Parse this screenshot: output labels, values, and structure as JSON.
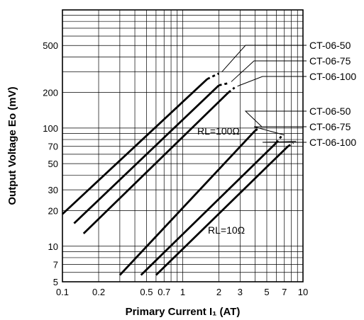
{
  "chart_data": {
    "type": "line",
    "x_scale": "log",
    "y_scale": "log",
    "xlim": [
      0.1,
      10
    ],
    "ylim": [
      5,
      1000
    ],
    "grid": true,
    "xlabel": "Primary Current I₁ (AT)",
    "ylabel": "Output Voltage Eo (mV)",
    "x_ticks": [
      0.1,
      0.2,
      0.5,
      0.7,
      1,
      2,
      3,
      5,
      7,
      10
    ],
    "x_tick_labels": [
      "0.1",
      "0.2",
      "0.5",
      "0.7",
      "1",
      "2",
      "3",
      "5",
      "7",
      "10"
    ],
    "y_ticks": [
      5,
      7,
      10,
      20,
      30,
      50,
      70,
      100,
      200,
      500
    ],
    "y_tick_labels": [
      "5",
      "7",
      "10",
      "20",
      "30",
      "50",
      "70",
      "100",
      "200",
      "500"
    ],
    "groups": [
      {
        "label": "RL=100Ω",
        "series": [
          {
            "name": "CT-06-50",
            "points": [
              [
                0.1,
                18.7
              ],
              [
                1.6,
                260
              ]
            ],
            "dashed_end": [
              2.0,
              290
            ]
          },
          {
            "name": "CT-06-75",
            "points": [
              [
                0.125,
                15.6
              ],
              [
                2.0,
                230
              ]
            ],
            "dashed_end": [
              2.4,
              240
            ]
          },
          {
            "name": "CT-06-100",
            "points": [
              [
                0.15,
                12.8
              ],
              [
                2.4,
                200
              ]
            ],
            "dashed_end": [
              2.7,
              220
            ]
          }
        ]
      },
      {
        "label": "RL=10Ω",
        "series": [
          {
            "name": "CT-06-50",
            "points": [
              [
                0.3,
                5.7
              ],
              [
                4.0,
                95
              ]
            ],
            "dashed_end": [
              4.3,
              100
            ]
          },
          {
            "name": "CT-06-75",
            "points": [
              [
                0.45,
                5.7
              ],
              [
                6.0,
                75
              ]
            ],
            "dashed_end": [
              6.6,
              85
            ]
          },
          {
            "name": "CT-06-100",
            "points": [
              [
                0.6,
                5.7
              ],
              [
                7.5,
                70
              ]
            ],
            "dashed_end": [
              8.3,
              75
            ]
          }
        ]
      }
    ]
  }
}
